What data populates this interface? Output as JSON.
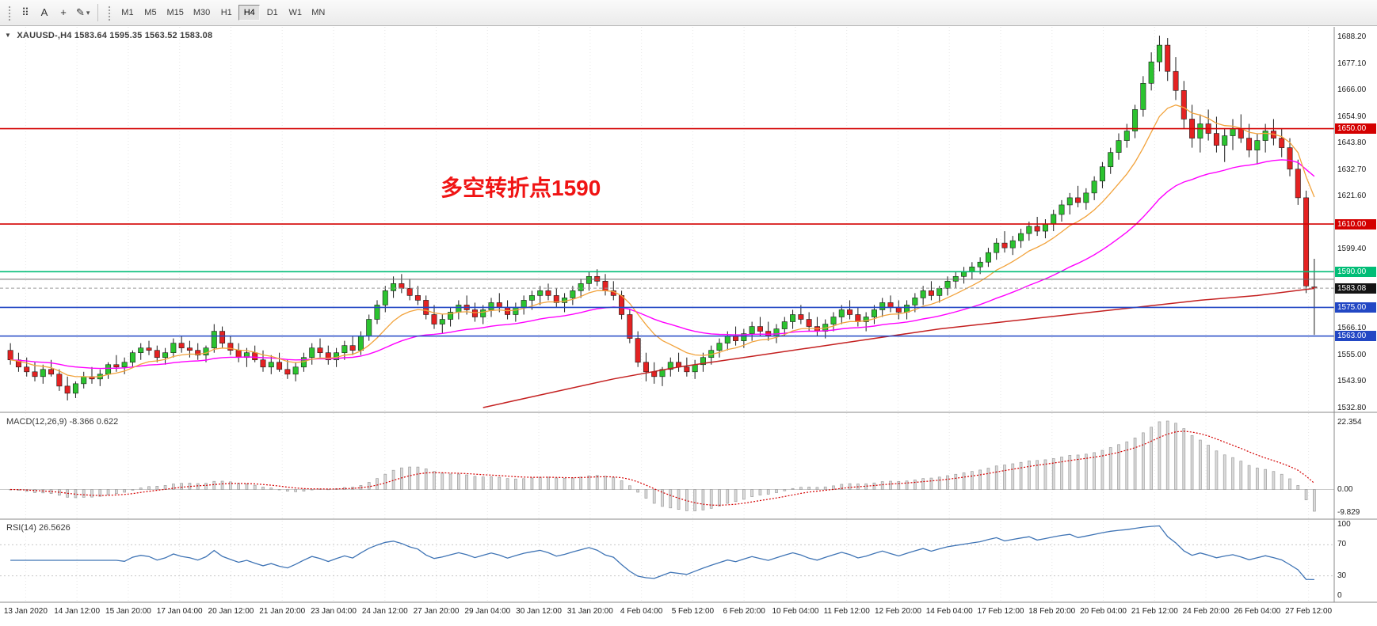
{
  "toolbar": {
    "tools": [
      {
        "name": "tick-chart-icon",
        "glyph": "⠿"
      },
      {
        "name": "text-tool-icon",
        "glyph": "A"
      },
      {
        "name": "crosshair-icon",
        "glyph": "+"
      },
      {
        "name": "draw-tools-icon",
        "glyph": "✎",
        "dropdown": "▾"
      }
    ],
    "timeframes": [
      "M1",
      "M5",
      "M15",
      "M30",
      "H1",
      "H4",
      "D1",
      "W1",
      "MN"
    ],
    "selected_timeframe": "H4"
  },
  "chart": {
    "collapse_icon": "▼",
    "symbol_title": "XAUUSD-,H4 1583.64 1595.35 1563.52 1583.08",
    "annotation": {
      "text": "多空转折点1590",
      "color": "#f01414"
    },
    "price_axis_ticks": [
      "1688.20",
      "1677.10",
      "1666.00",
      "1654.90",
      "1643.80",
      "1632.70",
      "1621.60",
      "1599.40",
      "1566.10",
      "1555.00",
      "1543.90",
      "1532.80"
    ],
    "hlines": [
      {
        "price": 1650.0,
        "label": "1650.00",
        "color": "#d40000"
      },
      {
        "price": 1610.0,
        "label": "1610.00",
        "color": "#d40000"
      },
      {
        "price": 1590.0,
        "label": "1590.00",
        "color": "#00bd76"
      },
      {
        "price": 1586.8,
        "label": "",
        "color": "#6a6a6a"
      },
      {
        "price": 1575.0,
        "label": "1575.00",
        "color": "#2247c4"
      },
      {
        "price": 1563.0,
        "label": "1563.00",
        "color": "#2247c4"
      }
    ],
    "current_price": {
      "value": 1583.08,
      "label": "1583.08",
      "bg": "#141414"
    },
    "colors": {
      "up": "#2bc32f",
      "down": "#e42222",
      "wick": "#1c1c1c",
      "ma_fast": "#f2a33c",
      "ma_mid": "#ff00ff",
      "ma_slow": "#c42020",
      "grid": "#e7e7e7",
      "bid_line": "#9a9a9a"
    }
  },
  "chart_data": {
    "type": "candlestick",
    "symbol": "XAUUSD-",
    "timeframe": "H4",
    "last_ohlc": {
      "open": 1583.64,
      "high": 1595.35,
      "low": 1563.52,
      "close": 1583.08
    },
    "y_axis_range": [
      1532.8,
      1688.2
    ],
    "candles": [
      [
        1557,
        1560,
        1551,
        1553
      ],
      [
        1553,
        1556,
        1548,
        1550
      ],
      [
        1550,
        1554,
        1546,
        1548
      ],
      [
        1548,
        1552,
        1544,
        1546
      ],
      [
        1546,
        1551,
        1543,
        1549
      ],
      [
        1549,
        1553,
        1546,
        1547
      ],
      [
        1547,
        1549,
        1540,
        1542
      ],
      [
        1542,
        1546,
        1536,
        1539
      ],
      [
        1539,
        1544,
        1537,
        1543
      ],
      [
        1543,
        1548,
        1541,
        1546
      ],
      [
        1546,
        1550,
        1543,
        1545
      ],
      [
        1545,
        1549,
        1542,
        1547
      ],
      [
        1547,
        1552,
        1545,
        1551
      ],
      [
        1551,
        1555,
        1548,
        1550
      ],
      [
        1550,
        1554,
        1547,
        1552
      ],
      [
        1552,
        1557,
        1550,
        1556
      ],
      [
        1556,
        1560,
        1553,
        1558
      ],
      [
        1558,
        1561,
        1555,
        1557
      ],
      [
        1557,
        1559,
        1552,
        1554
      ],
      [
        1554,
        1558,
        1551,
        1556
      ],
      [
        1556,
        1562,
        1554,
        1560
      ],
      [
        1560,
        1563,
        1556,
        1558
      ],
      [
        1558,
        1561,
        1554,
        1557
      ],
      [
        1557,
        1560,
        1553,
        1555
      ],
      [
        1555,
        1559,
        1552,
        1558
      ],
      [
        1558,
        1568,
        1556,
        1565
      ],
      [
        1565,
        1567,
        1558,
        1560
      ],
      [
        1560,
        1563,
        1555,
        1557
      ],
      [
        1557,
        1560,
        1552,
        1554
      ],
      [
        1554,
        1558,
        1550,
        1556
      ],
      [
        1556,
        1559,
        1552,
        1553
      ],
      [
        1553,
        1557,
        1548,
        1550
      ],
      [
        1550,
        1555,
        1547,
        1552
      ],
      [
        1552,
        1556,
        1548,
        1549
      ],
      [
        1549,
        1553,
        1545,
        1547
      ],
      [
        1547,
        1552,
        1544,
        1550
      ],
      [
        1550,
        1556,
        1548,
        1554
      ],
      [
        1554,
        1560,
        1551,
        1558
      ],
      [
        1558,
        1562,
        1554,
        1556
      ],
      [
        1556,
        1559,
        1551,
        1553
      ],
      [
        1553,
        1558,
        1550,
        1556
      ],
      [
        1556,
        1561,
        1553,
        1559
      ],
      [
        1559,
        1563,
        1555,
        1557
      ],
      [
        1557,
        1565,
        1555,
        1563
      ],
      [
        1563,
        1572,
        1561,
        1570
      ],
      [
        1570,
        1578,
        1568,
        1576
      ],
      [
        1576,
        1584,
        1573,
        1582
      ],
      [
        1582,
        1588,
        1579,
        1585
      ],
      [
        1585,
        1589,
        1581,
        1583
      ],
      [
        1583,
        1587,
        1578,
        1580
      ],
      [
        1580,
        1584,
        1576,
        1578
      ],
      [
        1578,
        1580,
        1570,
        1572
      ],
      [
        1572,
        1576,
        1566,
        1568
      ],
      [
        1568,
        1572,
        1564,
        1570
      ],
      [
        1570,
        1575,
        1567,
        1573
      ],
      [
        1573,
        1578,
        1570,
        1576
      ],
      [
        1576,
        1580,
        1572,
        1574
      ],
      [
        1574,
        1577,
        1569,
        1571
      ],
      [
        1571,
        1576,
        1568,
        1574
      ],
      [
        1574,
        1579,
        1571,
        1577
      ],
      [
        1577,
        1581,
        1573,
        1575
      ],
      [
        1575,
        1578,
        1570,
        1572
      ],
      [
        1572,
        1577,
        1569,
        1575
      ],
      [
        1575,
        1580,
        1572,
        1578
      ],
      [
        1578,
        1582,
        1574,
        1580
      ],
      [
        1580,
        1584,
        1576,
        1582
      ],
      [
        1582,
        1585,
        1578,
        1580
      ],
      [
        1580,
        1583,
        1575,
        1577
      ],
      [
        1577,
        1581,
        1573,
        1579
      ],
      [
        1579,
        1584,
        1576,
        1582
      ],
      [
        1582,
        1587,
        1579,
        1585
      ],
      [
        1585,
        1590,
        1582,
        1588
      ],
      [
        1588,
        1591,
        1584,
        1586
      ],
      [
        1586,
        1589,
        1580,
        1582
      ],
      [
        1582,
        1586,
        1578,
        1580
      ],
      [
        1580,
        1582,
        1570,
        1572
      ],
      [
        1572,
        1574,
        1560,
        1562
      ],
      [
        1562,
        1565,
        1550,
        1552
      ],
      [
        1552,
        1556,
        1544,
        1548
      ],
      [
        1548,
        1552,
        1543,
        1546
      ],
      [
        1546,
        1550,
        1542,
        1549
      ],
      [
        1549,
        1554,
        1546,
        1552
      ],
      [
        1552,
        1556,
        1548,
        1550
      ],
      [
        1550,
        1554,
        1546,
        1548
      ],
      [
        1548,
        1553,
        1545,
        1551
      ],
      [
        1551,
        1556,
        1548,
        1554
      ],
      [
        1554,
        1559,
        1551,
        1557
      ],
      [
        1557,
        1562,
        1554,
        1560
      ],
      [
        1560,
        1565,
        1557,
        1563
      ],
      [
        1563,
        1567,
        1559,
        1561
      ],
      [
        1561,
        1566,
        1558,
        1564
      ],
      [
        1564,
        1569,
        1561,
        1567
      ],
      [
        1567,
        1571,
        1563,
        1565
      ],
      [
        1565,
        1569,
        1561,
        1563
      ],
      [
        1563,
        1568,
        1560,
        1566
      ],
      [
        1566,
        1571,
        1563,
        1569
      ],
      [
        1569,
        1574,
        1566,
        1572
      ],
      [
        1572,
        1576,
        1568,
        1570
      ],
      [
        1570,
        1573,
        1565,
        1567
      ],
      [
        1567,
        1571,
        1563,
        1565
      ],
      [
        1565,
        1570,
        1562,
        1568
      ],
      [
        1568,
        1573,
        1565,
        1571
      ],
      [
        1571,
        1576,
        1568,
        1574
      ],
      [
        1574,
        1578,
        1570,
        1572
      ],
      [
        1572,
        1575,
        1567,
        1569
      ],
      [
        1569,
        1573,
        1565,
        1571
      ],
      [
        1571,
        1576,
        1568,
        1574
      ],
      [
        1574,
        1579,
        1571,
        1577
      ],
      [
        1577,
        1580,
        1573,
        1575
      ],
      [
        1575,
        1578,
        1570,
        1573
      ],
      [
        1573,
        1578,
        1570,
        1576
      ],
      [
        1576,
        1581,
        1573,
        1579
      ],
      [
        1579,
        1584,
        1576,
        1582
      ],
      [
        1582,
        1586,
        1578,
        1580
      ],
      [
        1580,
        1584,
        1577,
        1583
      ],
      [
        1583,
        1588,
        1580,
        1586
      ],
      [
        1586,
        1590,
        1583,
        1588
      ],
      [
        1588,
        1592,
        1585,
        1590
      ],
      [
        1590,
        1594,
        1587,
        1592
      ],
      [
        1592,
        1596,
        1589,
        1594
      ],
      [
        1594,
        1600,
        1592,
        1598
      ],
      [
        1598,
        1604,
        1595,
        1602
      ],
      [
        1602,
        1607,
        1598,
        1600
      ],
      [
        1600,
        1605,
        1597,
        1603
      ],
      [
        1603,
        1608,
        1600,
        1606
      ],
      [
        1606,
        1611,
        1603,
        1609
      ],
      [
        1609,
        1613,
        1605,
        1607
      ],
      [
        1607,
        1612,
        1604,
        1610
      ],
      [
        1610,
        1616,
        1607,
        1614
      ],
      [
        1614,
        1620,
        1611,
        1618
      ],
      [
        1618,
        1623,
        1614,
        1621
      ],
      [
        1621,
        1626,
        1617,
        1619
      ],
      [
        1619,
        1625,
        1616,
        1623
      ],
      [
        1623,
        1630,
        1620,
        1628
      ],
      [
        1628,
        1636,
        1625,
        1634
      ],
      [
        1634,
        1642,
        1631,
        1640
      ],
      [
        1640,
        1648,
        1637,
        1645
      ],
      [
        1645,
        1652,
        1642,
        1649
      ],
      [
        1649,
        1660,
        1646,
        1658
      ],
      [
        1658,
        1672,
        1655,
        1669
      ],
      [
        1669,
        1682,
        1666,
        1678
      ],
      [
        1678,
        1689,
        1674,
        1685
      ],
      [
        1685,
        1688,
        1670,
        1674
      ],
      [
        1674,
        1680,
        1662,
        1666
      ],
      [
        1666,
        1670,
        1650,
        1654
      ],
      [
        1654,
        1660,
        1642,
        1646
      ],
      [
        1646,
        1656,
        1640,
        1652
      ],
      [
        1652,
        1658,
        1645,
        1648
      ],
      [
        1648,
        1655,
        1640,
        1643
      ],
      [
        1643,
        1650,
        1636,
        1647
      ],
      [
        1647,
        1654,
        1641,
        1650
      ],
      [
        1650,
        1656,
        1644,
        1646
      ],
      [
        1646,
        1652,
        1638,
        1641
      ],
      [
        1641,
        1648,
        1635,
        1645
      ],
      [
        1645,
        1652,
        1640,
        1649
      ],
      [
        1649,
        1654,
        1643,
        1646
      ],
      [
        1646,
        1650,
        1638,
        1642
      ],
      [
        1642,
        1646,
        1630,
        1633
      ],
      [
        1633,
        1637,
        1618,
        1621
      ],
      [
        1621,
        1624,
        1581,
        1584
      ],
      [
        1583.6,
        1595.4,
        1563.5,
        1583.1
      ]
    ],
    "slow_ma_waypoints": [
      [
        58,
        1533
      ],
      [
        66,
        1539
      ],
      [
        74,
        1545
      ],
      [
        82,
        1550
      ],
      [
        90,
        1554
      ],
      [
        98,
        1558
      ],
      [
        106,
        1562
      ],
      [
        114,
        1566
      ],
      [
        122,
        1569
      ],
      [
        130,
        1572
      ],
      [
        138,
        1575
      ],
      [
        146,
        1578
      ],
      [
        153,
        1580
      ],
      [
        160,
        1583
      ]
    ],
    "time_labels": [
      "13 Jan 2020",
      "14 Jan 12:00",
      "15 Jan 20:00",
      "17 Jan 04:00",
      "20 Jan 12:00",
      "21 Jan 20:00",
      "23 Jan 04:00",
      "24 Jan 12:00",
      "27 Jan 20:00",
      "29 Jan 04:00",
      "30 Jan 12:00",
      "31 Jan 20:00",
      "4 Feb 04:00",
      "5 Feb 12:00",
      "6 Feb 20:00",
      "10 Feb 04:00",
      "11 Feb 12:00",
      "12 Feb 20:00",
      "14 Feb 04:00",
      "17 Feb 12:00",
      "18 Feb 20:00",
      "20 Feb 04:00",
      "21 Feb 12:00",
      "24 Feb 20:00",
      "26 Feb 04:00",
      "27 Feb 12:00"
    ]
  },
  "macd": {
    "label": "MACD(12,26,9) -8.366 0.622",
    "params": [
      12,
      26,
      9
    ],
    "main_value": -8.366,
    "signal_value": 0.622,
    "axis_max": "22.354",
    "axis_zero": "0.00",
    "axis_min": "-9.829",
    "histogram_color": "#d9d9d9",
    "histogram_stroke": "#9e9e9e",
    "signal_color": "#d40000"
  },
  "rsi": {
    "label": "RSI(14) 26.5626",
    "period": 14,
    "value": 26.5626,
    "axis": [
      "100",
      "70",
      "30",
      "0"
    ],
    "levels": [
      70,
      30
    ],
    "color": "#3f74b5",
    "level_color": "#c6c6c6"
  }
}
